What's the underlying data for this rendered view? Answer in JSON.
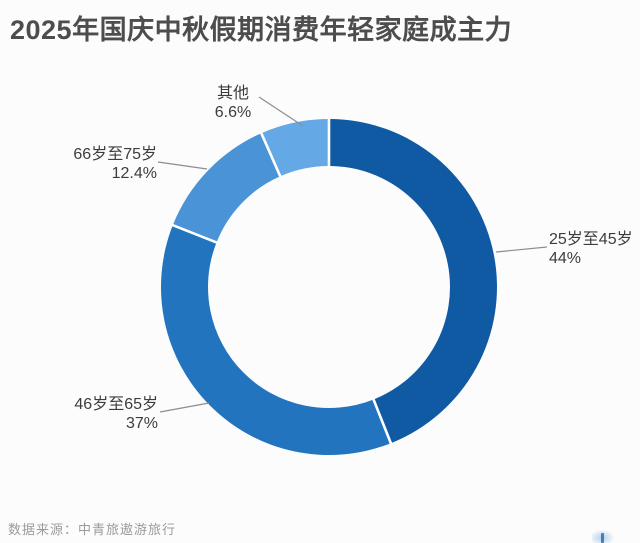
{
  "page_title": "2025年国庆中秋假期消费年轻家庭成主力",
  "source_note": "数据来源：中青旅遨游旅行",
  "icons": {
    "watermark": "partial-logo-fragment-bottom-right"
  },
  "chart_data": {
    "type": "pie",
    "subtype": "donut",
    "title": "2025年国庆中秋假期消费年轻家庭成主力",
    "unit": "%",
    "start_angle_deg": 0,
    "direction": "clockwise",
    "inner_radius_ratio": 0.72,
    "legend_position": "none",
    "label_style": "outside-with-leader-lines",
    "slices": [
      {
        "label": "25岁至45岁",
        "value": 44,
        "display": "44%",
        "color": "#0f5aa2"
      },
      {
        "label": "46岁至65岁",
        "value": 37,
        "display": "37%",
        "color": "#2174bd"
      },
      {
        "label": "66岁至75岁",
        "value": 12.4,
        "display": "12.4%",
        "color": "#4a93d6"
      },
      {
        "label": "其他",
        "value": 6.6,
        "display": "6.6%",
        "color": "#64a9e6"
      }
    ],
    "divider_color": "#ffffff",
    "leader_line_color": "#8d8d8d"
  }
}
